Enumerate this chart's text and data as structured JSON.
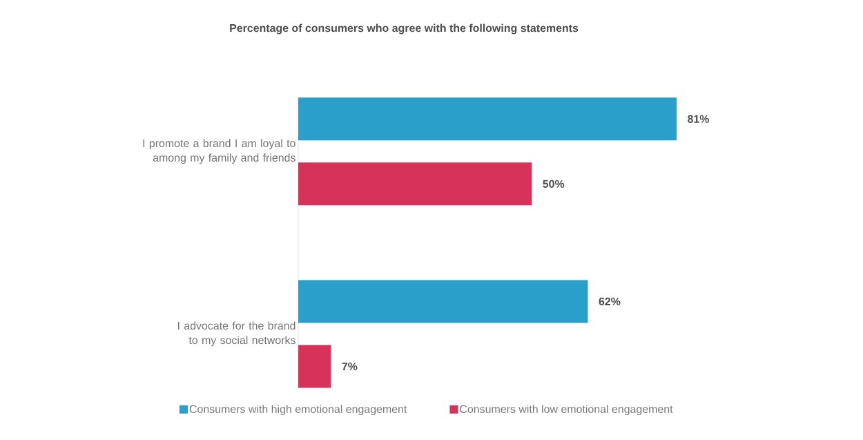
{
  "chart_data": {
    "type": "bar",
    "orientation": "horizontal",
    "title": "Percentage of consumers who agree with the following statements",
    "categories": [
      "I promote a brand I am loyal to among my family and friends",
      "I advocate for the brand to my social networks"
    ],
    "series": [
      {
        "name": "Consumers with high emotional engagement",
        "color": "#2a9fc9",
        "values": [
          81,
          62
        ],
        "value_labels": [
          "81%",
          "62%"
        ]
      },
      {
        "name": "Consumers with low emotional engagement",
        "color": "#d6325a",
        "values": [
          50,
          7
        ],
        "value_labels": [
          "50%",
          "7%"
        ]
      }
    ],
    "tick_labels": "y",
    "legend": "bottom",
    "grid": false
  }
}
